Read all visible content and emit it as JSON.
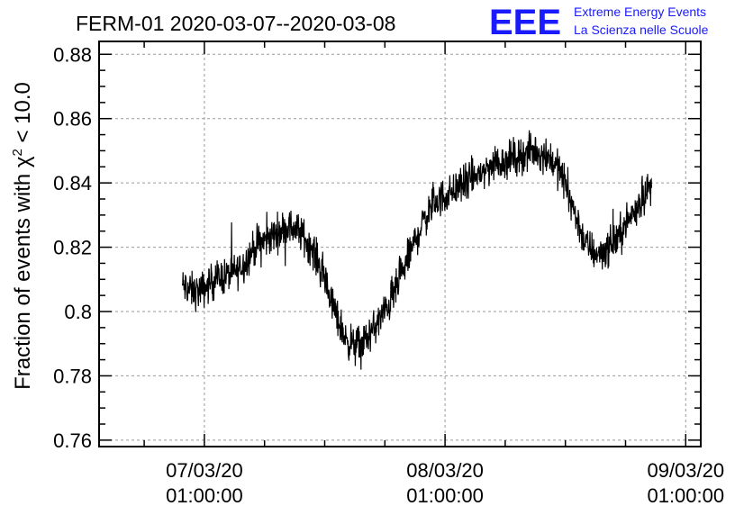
{
  "header": {
    "title": "FERM-01 2020-03-07--2020-03-08",
    "logo_text": "EEE",
    "logo_line1": "Extreme Energy Events",
    "logo_line2": "La Scienza nelle Scuole",
    "logo_color": "#1a1aff"
  },
  "chart_data": {
    "type": "line",
    "title": "FERM-01 2020-03-07--2020-03-08",
    "ylabel_prefix": "Fraction of events with ",
    "ylabel_chi": "χ",
    "ylabel_sup": "2",
    "ylabel_suffix": " < 10.0",
    "xlabel": "",
    "ylim": [
      0.758,
      0.884
    ],
    "yticks": [
      0.76,
      0.78,
      0.8,
      0.82,
      0.84,
      0.86,
      0.88
    ],
    "ytick_labels": [
      "0.76",
      "0.78",
      "0.8",
      "0.82",
      "0.84",
      "0.86",
      "0.88"
    ],
    "xlim_hours": [
      -10.5,
      49.5
    ],
    "xticks": [
      {
        "date": "07/03/20",
        "time": "01:00:00",
        "hours": 0
      },
      {
        "date": "08/03/20",
        "time": "01:00:00",
        "hours": 24
      },
      {
        "date": "09/03/20",
        "time": "01:00:00",
        "hours": 48
      }
    ],
    "grid": true,
    "line_color": "#000000",
    "series": [
      {
        "x_range_hours": [
          -2.2,
          44.6
        ],
        "trend_points": [
          [
            -2.2,
            0.808
          ],
          [
            -1.0,
            0.806
          ],
          [
            0.0,
            0.807
          ],
          [
            1.0,
            0.81
          ],
          [
            2.0,
            0.811
          ],
          [
            3.0,
            0.812
          ],
          [
            4.0,
            0.815
          ],
          [
            5.0,
            0.82
          ],
          [
            6.0,
            0.822
          ],
          [
            7.0,
            0.824
          ],
          [
            8.0,
            0.826
          ],
          [
            9.0,
            0.826
          ],
          [
            10.0,
            0.823
          ],
          [
            11.0,
            0.818
          ],
          [
            12.0,
            0.81
          ],
          [
            13.0,
            0.8
          ],
          [
            14.0,
            0.792
          ],
          [
            15.0,
            0.789
          ],
          [
            16.0,
            0.791
          ],
          [
            17.0,
            0.795
          ],
          [
            18.0,
            0.8
          ],
          [
            19.0,
            0.806
          ],
          [
            20.0,
            0.814
          ],
          [
            21.0,
            0.822
          ],
          [
            22.0,
            0.829
          ],
          [
            23.0,
            0.834
          ],
          [
            24.0,
            0.836
          ],
          [
            25.0,
            0.838
          ],
          [
            26.0,
            0.84
          ],
          [
            27.0,
            0.842
          ],
          [
            28.0,
            0.844
          ],
          [
            29.0,
            0.846
          ],
          [
            30.0,
            0.847
          ],
          [
            31.0,
            0.848
          ],
          [
            32.0,
            0.849
          ],
          [
            33.0,
            0.85
          ],
          [
            34.0,
            0.849
          ],
          [
            35.0,
            0.846
          ],
          [
            36.0,
            0.84
          ],
          [
            37.0,
            0.83
          ],
          [
            38.0,
            0.821
          ],
          [
            39.0,
            0.818
          ],
          [
            40.0,
            0.819
          ],
          [
            41.0,
            0.822
          ],
          [
            42.0,
            0.827
          ],
          [
            43.0,
            0.832
          ],
          [
            44.0,
            0.837
          ],
          [
            44.6,
            0.839
          ]
        ],
        "noise_amplitude": 0.006
      }
    ]
  }
}
